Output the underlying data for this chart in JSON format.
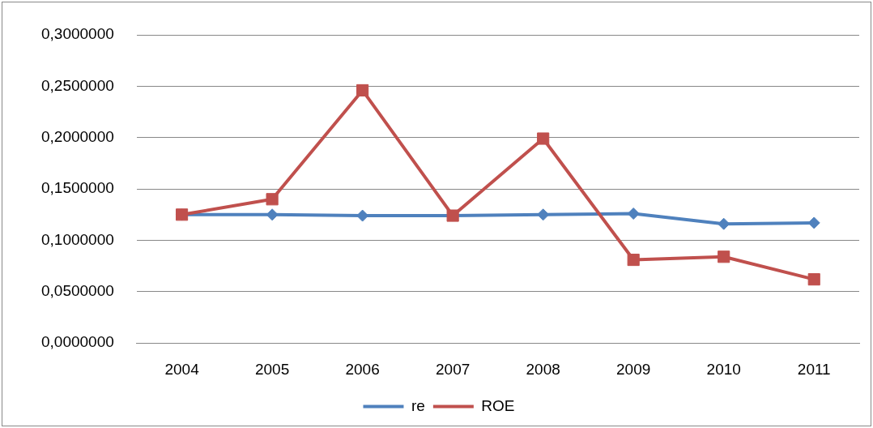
{
  "chart_data": {
    "type": "line",
    "categories": [
      "2004",
      "2005",
      "2006",
      "2007",
      "2008",
      "2009",
      "2010",
      "2011"
    ],
    "series": [
      {
        "name": "re",
        "color": "#4f81bd",
        "marker": "diamond",
        "values": [
          0.125,
          0.125,
          0.124,
          0.124,
          0.125,
          0.126,
          0.116,
          0.117
        ]
      },
      {
        "name": "ROE",
        "color": "#c0504d",
        "marker": "square",
        "values": [
          0.125,
          0.14,
          0.246,
          0.124,
          0.199,
          0.081,
          0.084,
          0.062
        ]
      }
    ],
    "ylim": [
      0,
      0.3
    ],
    "yticks": [
      {
        "value": 0,
        "label": "0,0000000"
      },
      {
        "value": 0.05,
        "label": "0,0500000"
      },
      {
        "value": 0.1,
        "label": "0,1000000"
      },
      {
        "value": 0.15,
        "label": "0,1500000"
      },
      {
        "value": 0.2,
        "label": "0,2000000"
      },
      {
        "value": 0.25,
        "label": "0,2500000"
      },
      {
        "value": 0.3,
        "label": "0,3000000"
      }
    ],
    "grid": "y",
    "legend": "bottom",
    "line_style": "solid"
  }
}
